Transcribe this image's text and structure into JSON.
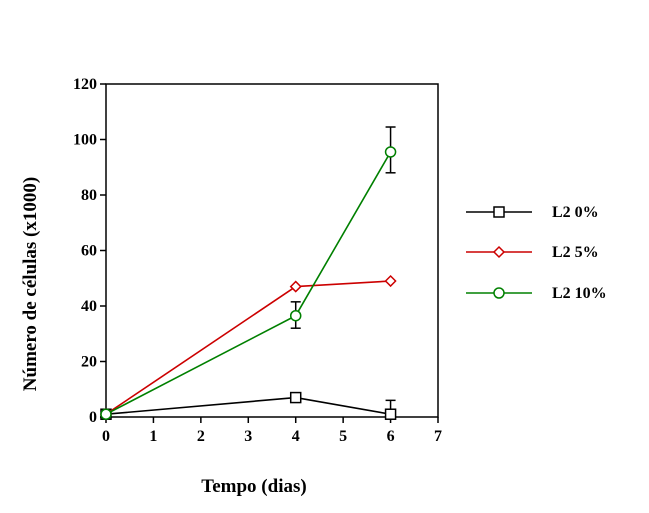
{
  "chart_data": {
    "type": "line",
    "xlabel": "Tempo (dias)",
    "ylabel": "Número de células (x1000)",
    "xlim": [
      0,
      7
    ],
    "ylim": [
      0,
      120
    ],
    "xticks": [
      "0",
      "1",
      "2",
      "3",
      "4",
      "5",
      "6",
      "7"
    ],
    "yticks": [
      "0",
      "20",
      "40",
      "60",
      "80",
      "100",
      "120"
    ],
    "grid": false,
    "legend_position": "right",
    "series": [
      {
        "name": "L2 0%",
        "color": "#000000",
        "marker": "square",
        "x": [
          0,
          4,
          6
        ],
        "y": [
          1,
          7,
          1
        ],
        "error_upper": [
          0,
          0,
          5
        ],
        "error_lower": [
          0,
          0,
          0
        ]
      },
      {
        "name": "L2 5%",
        "color": "#cc0000",
        "marker": "diamond",
        "x": [
          0,
          4,
          6
        ],
        "y": [
          1,
          47,
          49
        ],
        "error_upper": [
          0,
          0,
          0
        ],
        "error_lower": [
          0,
          0,
          0
        ]
      },
      {
        "name": "L2 10%",
        "color": "#008000",
        "marker": "circle",
        "x": [
          0,
          4,
          6
        ],
        "y": [
          1,
          36.5,
          95.5
        ],
        "error_upper": [
          0,
          5,
          9
        ],
        "error_lower": [
          0,
          4.5,
          7.5
        ]
      }
    ]
  }
}
